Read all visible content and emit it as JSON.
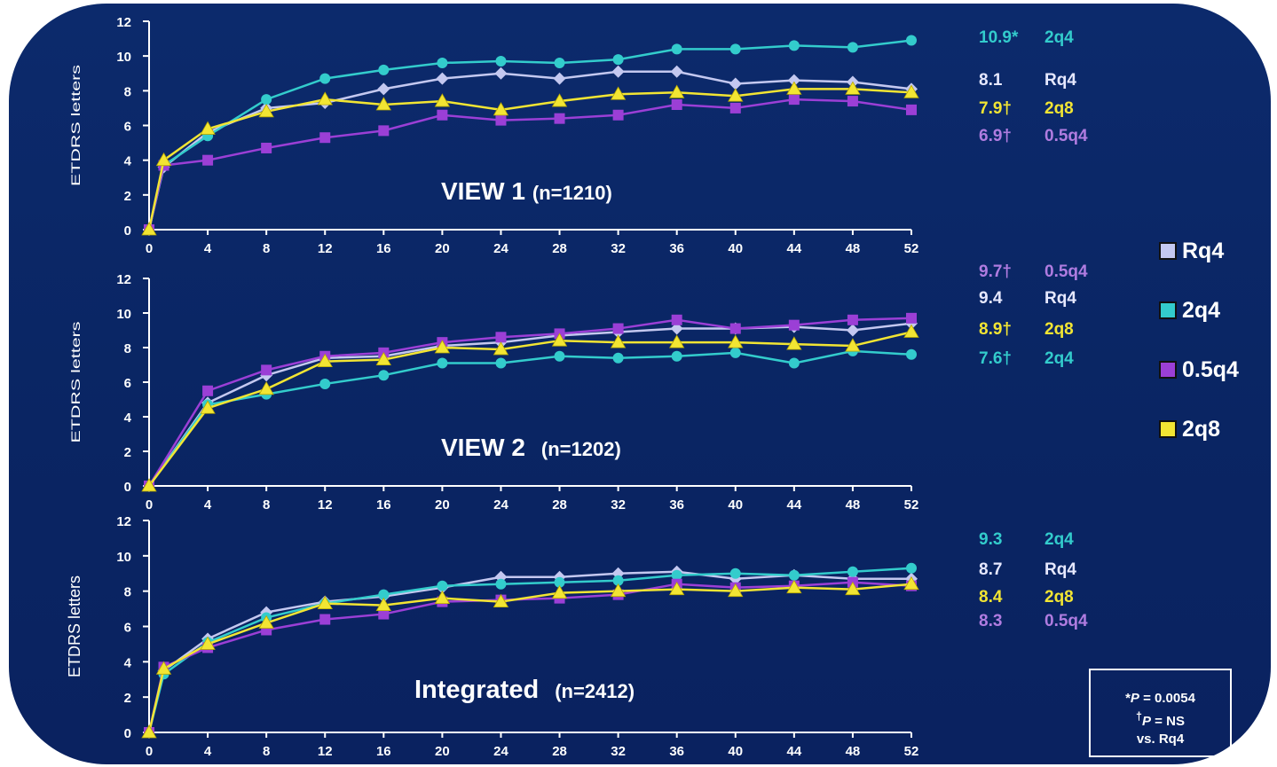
{
  "chart_data": [
    {
      "type": "line",
      "title": "VIEW 1",
      "title_suffix": "(n=1210)",
      "ylabel": "ETDRS letters",
      "ylim": [
        0,
        12
      ],
      "yticks": [
        0,
        2,
        4,
        6,
        8,
        10,
        12
      ],
      "xticks": [
        0,
        4,
        8,
        12,
        16,
        20,
        24,
        28,
        32,
        36,
        40,
        44,
        48,
        52
      ],
      "x": [
        0,
        1,
        4,
        8,
        12,
        16,
        20,
        24,
        28,
        32,
        36,
        40,
        44,
        48,
        52
      ],
      "series": [
        {
          "name": "Rq4",
          "values": [
            0,
            3.6,
            5.6,
            7.0,
            7.3,
            8.1,
            8.7,
            9.0,
            8.7,
            9.1,
            9.1,
            8.4,
            8.6,
            8.5,
            8.1
          ]
        },
        {
          "name": "2q4",
          "values": [
            0,
            3.7,
            5.4,
            7.5,
            8.7,
            9.2,
            9.6,
            9.7,
            9.6,
            9.8,
            10.4,
            10.4,
            10.6,
            10.5,
            10.9
          ]
        },
        {
          "name": "0.5q4",
          "values": [
            0,
            3.7,
            4.0,
            4.7,
            5.3,
            5.7,
            6.6,
            6.3,
            6.4,
            6.6,
            7.2,
            7.0,
            7.5,
            7.4,
            6.9
          ]
        },
        {
          "name": "2q8",
          "values": [
            0,
            4.0,
            5.8,
            6.8,
            7.5,
            7.2,
            7.4,
            6.9,
            7.4,
            7.8,
            7.9,
            7.7,
            8.1,
            8.1,
            7.9
          ]
        }
      ]
    },
    {
      "type": "line",
      "title": "VIEW 2",
      "title_suffix": "(n=1202)",
      "ylabel": "ETDRS letters",
      "ylim": [
        0,
        12
      ],
      "yticks": [
        0,
        2,
        4,
        6,
        8,
        10,
        12
      ],
      "xticks": [
        0,
        4,
        8,
        12,
        16,
        20,
        24,
        28,
        32,
        36,
        40,
        44,
        48,
        52
      ],
      "x": [
        0,
        4,
        8,
        12,
        16,
        20,
        24,
        28,
        32,
        36,
        40,
        44,
        48,
        52
      ],
      "series": [
        {
          "name": "Rq4",
          "values": [
            0,
            4.8,
            6.4,
            7.4,
            7.5,
            8.1,
            8.3,
            8.7,
            8.9,
            9.1,
            9.1,
            9.2,
            9.0,
            9.4
          ]
        },
        {
          "name": "2q4",
          "values": [
            0,
            4.7,
            5.3,
            5.9,
            6.4,
            7.1,
            7.1,
            7.5,
            7.4,
            7.5,
            7.7,
            7.1,
            7.8,
            7.6
          ]
        },
        {
          "name": "0.5q4",
          "values": [
            0,
            5.5,
            6.7,
            7.5,
            7.7,
            8.3,
            8.6,
            8.8,
            9.1,
            9.6,
            9.1,
            9.3,
            9.6,
            9.7
          ]
        },
        {
          "name": "2q8",
          "values": [
            0,
            4.5,
            5.6,
            7.2,
            7.3,
            8.0,
            7.9,
            8.4,
            8.3,
            8.3,
            8.3,
            8.2,
            8.1,
            8.9
          ]
        }
      ]
    },
    {
      "type": "line",
      "title": "Integrated",
      "title_suffix": "(n=2412)",
      "ylabel": "ETDRS letters",
      "ylim": [
        0,
        12
      ],
      "yticks": [
        0,
        2,
        4,
        6,
        8,
        10,
        12
      ],
      "xticks": [
        0,
        4,
        8,
        12,
        16,
        20,
        24,
        28,
        32,
        36,
        40,
        44,
        48,
        52
      ],
      "x": [
        0,
        1,
        4,
        8,
        12,
        16,
        20,
        24,
        28,
        32,
        36,
        40,
        44,
        48,
        52
      ],
      "series": [
        {
          "name": "Rq4",
          "values": [
            0,
            3.5,
            5.3,
            6.8,
            7.4,
            7.7,
            8.2,
            8.8,
            8.8,
            9.0,
            9.1,
            8.7,
            8.9,
            8.7,
            8.7
          ]
        },
        {
          "name": "2q4",
          "values": [
            0,
            3.3,
            5.1,
            6.5,
            7.3,
            7.8,
            8.3,
            8.4,
            8.5,
            8.6,
            8.9,
            9.0,
            8.9,
            9.1,
            9.3
          ]
        },
        {
          "name": "0.5q4",
          "values": [
            0,
            3.7,
            4.8,
            5.8,
            6.4,
            6.7,
            7.4,
            7.5,
            7.6,
            7.8,
            8.4,
            8.2,
            8.3,
            8.5,
            8.3
          ]
        },
        {
          "name": "2q8",
          "values": [
            0,
            3.6,
            5.0,
            6.2,
            7.3,
            7.2,
            7.6,
            7.4,
            7.9,
            8.0,
            8.1,
            8.0,
            8.2,
            8.1,
            8.4
          ]
        }
      ]
    }
  ],
  "colors": {
    "Rq4": "#c4c8f0",
    "2q4": "#33cccc",
    "0.5q4": "#9b3fd6",
    "2q8": "#f2e533",
    "annot_Rq4": "#e6e8ff",
    "annot_2q4": "#33cccc",
    "annot_0.5q4": "#b07ce0",
    "annot_2q8": "#f2e533"
  },
  "annotations": [
    [
      {
        "value": "10.9*",
        "label": "2q4",
        "series": "2q4"
      },
      {
        "value": "8.1",
        "label": "Rq4",
        "series": "Rq4"
      },
      {
        "value": "7.9†",
        "label": "2q8",
        "series": "2q8"
      },
      {
        "value": "6.9†",
        "label": "0.5q4",
        "series": "0.5q4"
      }
    ],
    [
      {
        "value": "9.7†",
        "label": "0.5q4",
        "series": "0.5q4"
      },
      {
        "value": "9.4",
        "label": "Rq4",
        "series": "Rq4"
      },
      {
        "value": "8.9†",
        "label": "2q8",
        "series": "2q8"
      },
      {
        "value": "7.6†",
        "label": "2q4",
        "series": "2q4"
      }
    ],
    [
      {
        "value": "9.3",
        "label": "2q4",
        "series": "2q4"
      },
      {
        "value": "8.7",
        "label": "Rq4",
        "series": "Rq4"
      },
      {
        "value": "8.4",
        "label": "2q8",
        "series": "2q8"
      },
      {
        "value": "8.3",
        "label": "0.5q4",
        "series": "0.5q4"
      }
    ]
  ],
  "legend": {
    "position": "right",
    "items": [
      {
        "label": "Rq4",
        "series": "Rq4"
      },
      {
        "label": "2q4",
        "series": "2q4"
      },
      {
        "label": "0.5q4",
        "series": "0.5q4"
      },
      {
        "label": "2q8",
        "series": "2q8"
      }
    ]
  },
  "pvalue_box": {
    "line1_prefix": "*",
    "line1_p": "P",
    "line1_rest": " = 0.0054",
    "line2_prefix": "†",
    "line2_p": "P",
    "line2_rest": " = NS",
    "line3": "vs. Rq4"
  }
}
